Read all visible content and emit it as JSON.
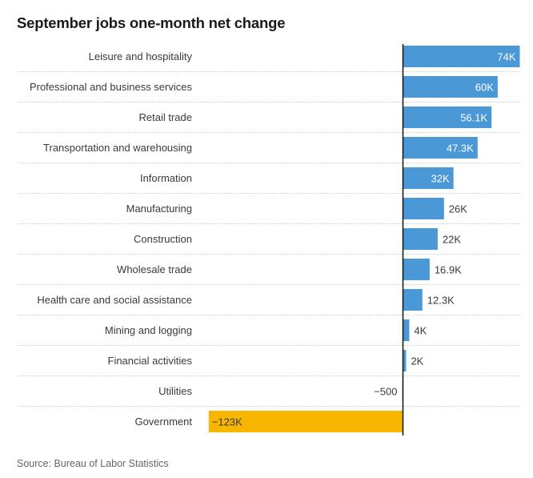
{
  "chart_data": {
    "type": "bar",
    "orientation": "horizontal",
    "title": "September jobs one-month net change",
    "source": "Source: Bureau of Labor Statistics",
    "xlabel": "",
    "ylabel": "",
    "xlim": [
      -123000,
      74000
    ],
    "grid": false,
    "legend": "none",
    "categories": [
      "Leisure and hospitality",
      "Professional and business services",
      "Retail trade",
      "Transportation and warehousing",
      "Information",
      "Manufacturing",
      "Construction",
      "Wholesale trade",
      "Health care and social assistance",
      "Mining and logging",
      "Financial activities",
      "Utilities",
      "Government"
    ],
    "values": [
      74000,
      60000,
      56100,
      47300,
      32000,
      26000,
      22000,
      16900,
      12300,
      4000,
      2000,
      -500,
      -123000
    ],
    "data_labels": [
      "74K",
      "60K",
      "56.1K",
      "47.3K",
      "32K",
      "26K",
      "22K",
      "16.9K",
      "12.3K",
      "4K",
      "2K",
      "−500",
      "−123K"
    ],
    "colors": {
      "positive": "#4a98d6",
      "negative": "#f9b600",
      "axis": "#111111",
      "separator": "#cccccc"
    }
  }
}
